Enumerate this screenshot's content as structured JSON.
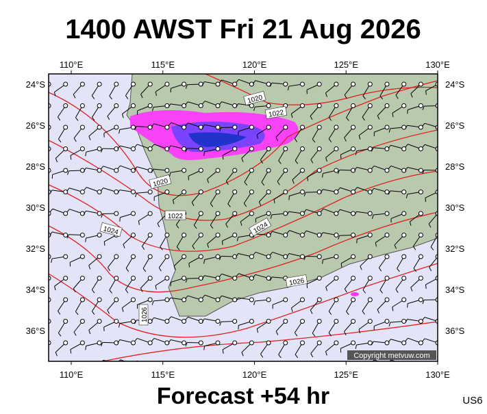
{
  "header": {
    "title": "1400 AWST Fri 21 Aug 2026"
  },
  "map": {
    "lon_labels": [
      "110°E",
      "115°E",
      "120°E",
      "125°E",
      "130°E"
    ],
    "lat_labels": [
      "24°S",
      "26°S",
      "28°S",
      "30°S",
      "32°S",
      "34°S",
      "36°S"
    ],
    "contour_labels": [
      "1020",
      "1022",
      "1020",
      "1022",
      "1024",
      "1024",
      "1026",
      "1026"
    ],
    "copyright": "Copyright metvuw.com"
  },
  "footer": {
    "forecast": "Forecast +54 hr",
    "code": "US6"
  }
}
